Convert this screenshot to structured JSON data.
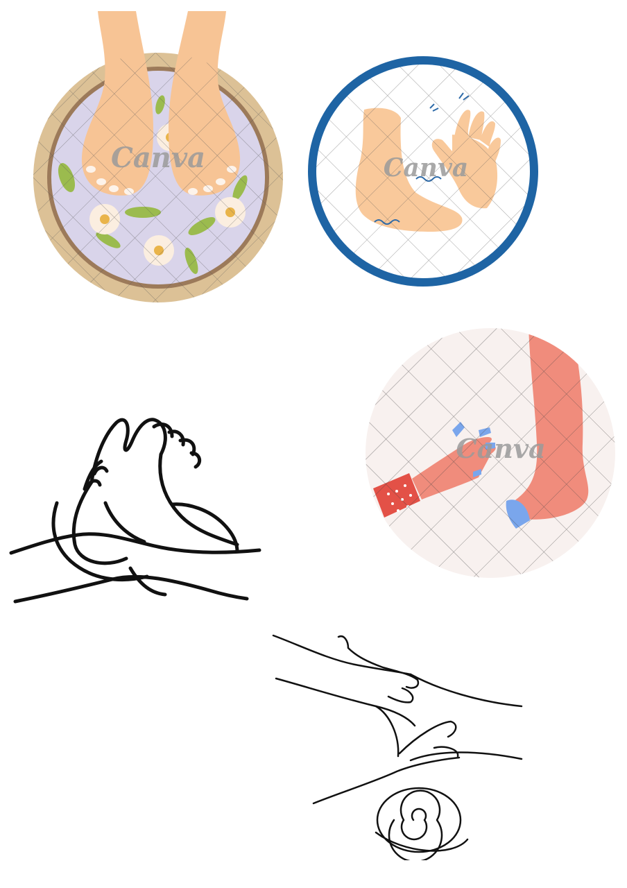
{
  "images": [
    {
      "id": "foot-soak-bowl",
      "watermark": "Canva",
      "colors": {
        "rim": "#dcc196",
        "water": "#d9d4ea",
        "skin": "#f7c495",
        "leaf": "#9bbb4e"
      }
    },
    {
      "id": "foot-and-hand-pain",
      "watermark": "Canva",
      "colors": {
        "ring": "#1e64a4",
        "skin": "#f9c99b",
        "lines": "#2d6aa8"
      }
    },
    {
      "id": "hands-massaging-feet-outline",
      "watermark": "",
      "colors": {
        "ink": "#111111"
      }
    },
    {
      "id": "hand-touching-leg",
      "watermark": "Canva",
      "colors": {
        "bg": "#f8f1ef",
        "skin": "#f08c7c",
        "sleeve": "#e35147",
        "sock": "#7aa6ec"
      }
    },
    {
      "id": "leg-massage-towel-lineart",
      "watermark": "",
      "colors": {
        "ink": "#111111"
      }
    }
  ]
}
